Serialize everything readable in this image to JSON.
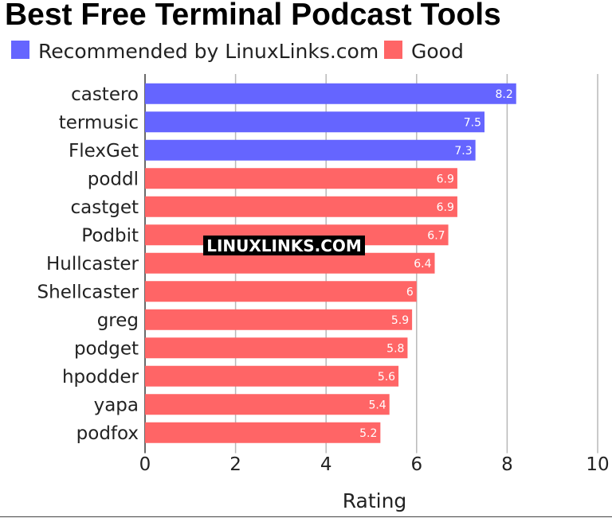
{
  "chart_data": {
    "type": "bar",
    "orientation": "horizontal",
    "title": "Best Free Terminal Podcast Tools",
    "xlabel": "Rating",
    "ylabel": "",
    "xlim": [
      0,
      10
    ],
    "xticks": [
      "0",
      "2",
      "4",
      "6",
      "8",
      "10"
    ],
    "grid": true,
    "legend_position": "top-left",
    "legend": [
      {
        "name": "Recommended by LinuxLinks.com",
        "color": "#6565ff"
      },
      {
        "name": "Good",
        "color": "#ff6566"
      }
    ],
    "categories": [
      "castero",
      "termusic",
      "FlexGet",
      "poddl",
      "castget",
      "Podbit",
      "Hullcaster",
      "Shellcaster",
      "greg",
      "podget",
      "hpodder",
      "yapa",
      "podfox"
    ],
    "values": [
      8.2,
      7.5,
      7.3,
      6.9,
      6.9,
      6.7,
      6.4,
      6,
      5.9,
      5.8,
      5.6,
      5.4,
      5.2
    ],
    "value_labels": [
      "8.2",
      "7.5",
      "7.3",
      "6.9",
      "6.9",
      "6.7",
      "6.4",
      "6",
      "5.9",
      "5.8",
      "5.6",
      "5.4",
      "5.2"
    ],
    "groups": [
      "Recommended by LinuxLinks.com",
      "Recommended by LinuxLinks.com",
      "Recommended by LinuxLinks.com",
      "Good",
      "Good",
      "Good",
      "Good",
      "Good",
      "Good",
      "Good",
      "Good",
      "Good",
      "Good"
    ],
    "watermark": "LINUXLINKS.COM"
  }
}
